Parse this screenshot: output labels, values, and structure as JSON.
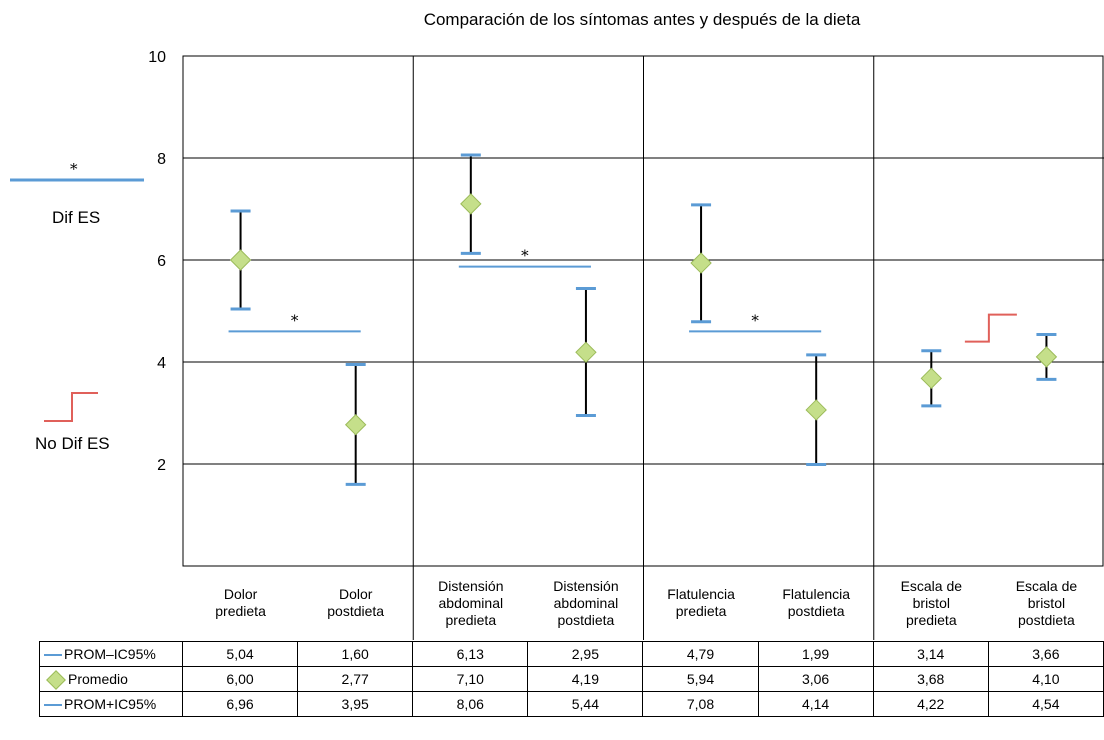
{
  "chart_data": {
    "type": "scatter",
    "title": "Comparación de los síntomas antes y después de la dieta",
    "ylim": [
      0,
      10
    ],
    "yticks": [
      "2",
      "4",
      "6",
      "8",
      "10"
    ],
    "grid": true,
    "categories": [
      "Dolor\npredieta",
      "Dolor\npostdieta",
      "Distensión\nabdominal\npredieta",
      "Distensión\nabdominal\npostdieta",
      "Flatulencia\npredieta",
      "Flatulencia\npostdieta",
      "Escala de\nbristol\npredieta",
      "Escala de\nbristol\npostdieta"
    ],
    "series": [
      {
        "name": "PROM–IC95%",
        "values": [
          5.04,
          1.6,
          6.13,
          2.95,
          4.79,
          1.99,
          3.14,
          3.66
        ]
      },
      {
        "name": "Promedio",
        "values": [
          6.0,
          2.77,
          7.1,
          4.19,
          5.94,
          3.06,
          3.68,
          4.1
        ]
      },
      {
        "name": "PROM+IC95%",
        "values": [
          6.96,
          3.95,
          8.06,
          5.44,
          7.08,
          4.14,
          4.22,
          4.54
        ]
      }
    ],
    "table_values": [
      [
        "5,04",
        "1,60",
        "6,13",
        "2,95",
        "4,79",
        "1,99",
        "3,14",
        "3,66"
      ],
      [
        "6,00",
        "2,77",
        "7,10",
        "4,19",
        "5,94",
        "3,06",
        "3,68",
        "4,10"
      ],
      [
        "6,96",
        "3,95",
        "8,06",
        "5,44",
        "7,08",
        "4,14",
        "4,22",
        "4,54"
      ]
    ],
    "annotations": [
      {
        "symbol": "*",
        "meaning": "Dif ES",
        "group": "Dolor",
        "y": 4.6
      },
      {
        "symbol": "*",
        "meaning": "Dif ES",
        "group": "Distensión abdominal",
        "y": 5.87
      },
      {
        "symbol": "*",
        "meaning": "Dif ES",
        "group": "Flatulencia",
        "y": 4.6
      },
      {
        "symbol": "step",
        "meaning": "No Dif ES",
        "group": "Escala de bristol",
        "y": 4.4
      }
    ],
    "legend": {
      "sig_star": "*",
      "sig_label": "Dif ES",
      "nonsig_label": "No Dif ES"
    },
    "colors": {
      "ci_bar": "#5b9bd5",
      "diamond_fill": "#c5df8a",
      "diamond_stroke": "#9bbb59",
      "nonsig_step": "#e0605a"
    }
  }
}
